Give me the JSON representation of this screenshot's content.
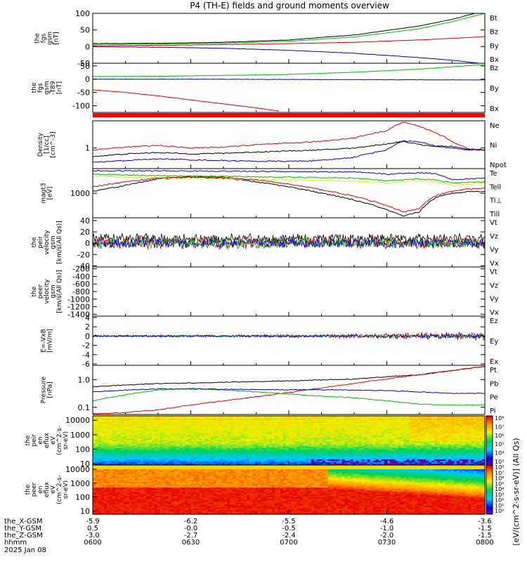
{
  "chart_data": {
    "title": "P4 (TH-E) fields and ground moments overview",
    "type": "line",
    "x": {
      "tick_labels": [
        "0600",
        "0630",
        "0700",
        "0730",
        "0800"
      ],
      "tick_minutes": [
        0,
        30,
        60,
        90,
        120
      ],
      "range_minutes": [
        0,
        120
      ],
      "label": "hhmm",
      "date": "2025 Jan 08",
      "ephemeris": [
        {
          "label": "the_X-GSM",
          "values": [
            "-5.9",
            "-6.2",
            "-5.5",
            "-4.6",
            "-3.6"
          ]
        },
        {
          "label": "the_Y-GSM",
          "values": [
            "0.5",
            "-0.0",
            "-0.5",
            "-1.0",
            "-1.5"
          ]
        },
        {
          "label": "the_Z-GSM",
          "values": [
            "-3.0",
            "-2.7",
            "-2.4",
            "-2.0",
            "-1.5"
          ]
        }
      ]
    },
    "panels": [
      {
        "id": "fgs",
        "ylabel": [
          "the",
          "fgs",
          "gsm",
          "[nT]"
        ],
        "ylim": [
          -50,
          100
        ],
        "log": false,
        "yticks": [
          100,
          50,
          0,
          -50
        ],
        "ytick_labels": [
          "100",
          "50",
          "0",
          "-50"
        ],
        "series": [
          {
            "name": "Bt",
            "color": "#000000",
            "x": [
              0,
              20,
              40,
              60,
              80,
              100,
              110,
              120
            ],
            "y": [
              9,
              10,
              13,
              20,
              35,
              62,
              82,
              108
            ]
          },
          {
            "name": "Bz",
            "color": "#dd0000",
            "x": [
              0,
              20,
              40,
              60,
              80,
              100,
              120
            ],
            "y": [
              3,
              4,
              6,
              9,
              13,
              20,
              30
            ]
          },
          {
            "name": "By",
            "color": "#00bb00",
            "x": [
              0,
              20,
              40,
              60,
              80,
              100,
              110,
              120
            ],
            "y": [
              7,
              8,
              10,
              16,
              29,
              54,
              75,
              100
            ]
          },
          {
            "name": "Bx",
            "color": "#0000cc",
            "x": [
              0,
              20,
              40,
              60,
              80,
              100,
              110,
              120
            ],
            "y": [
              0,
              -2,
              -5,
              -11,
              -20,
              -33,
              -41,
              -52
            ]
          }
        ]
      },
      {
        "id": "fgs_t89",
        "ylabel": [
          "the",
          "fgs",
          "gsm",
          "-T89",
          "[nT]"
        ],
        "ylim": [
          -125,
          60
        ],
        "log": false,
        "yticks": [
          50,
          0,
          -50,
          -100
        ],
        "ytick_labels": [
          "50",
          "0",
          "-50",
          "-100"
        ],
        "series": [
          {
            "name": "Bz",
            "color": "#dd0000",
            "x": [
              0,
              10,
              20,
              30,
              40,
              50,
              57
            ],
            "y": [
              -40,
              -50,
              -63,
              -78,
              -93,
              -108,
              -120
            ]
          },
          {
            "name": "By",
            "color": "#00bb00",
            "x": [
              0,
              20,
              40,
              60,
              80,
              100,
              120
            ],
            "y": [
              10,
              11,
              14,
              18,
              26,
              38,
              55
            ]
          },
          {
            "name": "Bx",
            "color": "#0000cc",
            "x": [
              0,
              30,
              60,
              90,
              120
            ],
            "y": [
              0,
              0,
              -1,
              -2,
              -3
            ]
          }
        ]
      },
      {
        "id": "density",
        "ylabel": [
          "Density",
          "[1/cc]",
          "[cm^-3]"
        ],
        "ylim": [
          0.32,
          4.5
        ],
        "log": true,
        "yticks": [
          1
        ],
        "ytick_labels": [
          "1"
        ],
        "series": [
          {
            "name": "Ne",
            "color": "#dd0000",
            "x": [
              0,
              10,
              20,
              30,
              40,
              50,
              60,
              70,
              80,
              90,
              95,
              100,
              105,
              110,
              115,
              120
            ],
            "y": [
              0.9,
              1.05,
              1.15,
              1.0,
              1.05,
              1.2,
              1.3,
              1.45,
              1.75,
              2.6,
              4.2,
              3.3,
              2.3,
              1.4,
              0.95,
              0.9
            ]
          },
          {
            "name": "Ni",
            "color": "#000000",
            "x": [
              0,
              10,
              20,
              30,
              40,
              50,
              60,
              70,
              80,
              90,
              95,
              100,
              105,
              110,
              115,
              120
            ],
            "y": [
              0.62,
              0.72,
              0.78,
              0.72,
              0.75,
              0.8,
              0.85,
              0.9,
              1.0,
              1.25,
              1.45,
              1.2,
              1.1,
              1.1,
              0.9,
              0.9
            ]
          },
          {
            "name": "Npot",
            "color": "#0000cc",
            "x": [
              0,
              10,
              20,
              30,
              40,
              50,
              60,
              70,
              80,
              90,
              95,
              100,
              105,
              110,
              115,
              120
            ],
            "y": [
              0.45,
              0.5,
              0.55,
              0.52,
              0.5,
              0.48,
              0.48,
              0.5,
              0.6,
              0.9,
              1.5,
              1.4,
              1.1,
              1.0,
              0.9,
              0.9
            ]
          }
        ]
      },
      {
        "id": "temp",
        "ylabel": [
          "magt3",
          "[eV]"
        ],
        "ylim": [
          280,
          3600
        ],
        "log": true,
        "yticks": [
          1000
        ],
        "ytick_labels": [
          "1000"
        ],
        "series": [
          {
            "name": "Te⊥",
            "color": "#0000cc",
            "x": [
              0,
              20,
              40,
              60,
              80,
              90,
              100,
              105,
              110,
              120
            ],
            "y": [
              3200,
              3200,
              3150,
              3100,
              3000,
              2700,
              2900,
              2800,
              2000,
              2200
            ]
          },
          {
            "name": "Tell",
            "color": "#000000",
            "x": [
              0,
              10,
              20,
              30,
              40,
              50,
              60,
              70,
              80,
              90,
              95,
              100,
              105,
              110,
              115,
              120
            ],
            "y": [
              1100,
              1500,
              2100,
              2300,
              2200,
              1800,
              1400,
              1000,
              700,
              420,
              300,
              380,
              800,
              1000,
              1100,
              1100
            ]
          },
          {
            "name": "Ti⊥",
            "color": "#00bb00",
            "x": [
              0,
              20,
              40,
              60,
              80,
              90,
              100,
              105,
              110,
              120
            ],
            "y": [
              2700,
              2500,
              2400,
              2300,
              2200,
              1900,
              2100,
              2000,
              1700,
              1800
            ]
          },
          {
            "name": "Till",
            "color": "#ccff00",
            "x": [
              0,
              20,
              40,
              60,
              80,
              90,
              100,
              105,
              110,
              120
            ],
            "y": [
              2400,
              2200,
              2100,
              2000,
              1900,
              1700,
              1900,
              1800,
              1500,
              1700
            ]
          },
          {
            "name": "Te",
            "color": "#dd0000",
            "x": [
              0,
              10,
              20,
              30,
              40,
              50,
              60,
              70,
              80,
              90,
              95,
              100,
              105,
              110,
              115,
              120
            ],
            "y": [
              1400,
              1800,
              2200,
              2400,
              2300,
              2000,
              1600,
              1200,
              850,
              520,
              380,
              450,
              900,
              1100,
              1250,
              1300
            ]
          }
        ]
      },
      {
        "id": "peir_vel",
        "ylabel": [
          "the",
          "peir",
          "velocity",
          "gsm",
          "[km/s(All Qs)]"
        ],
        "ylim": [
          -42,
          45
        ],
        "log": false,
        "yticks": [
          40,
          20,
          0,
          -20,
          -40
        ],
        "ytick_labels": [
          "40",
          "20",
          "0",
          "-20",
          "-40"
        ],
        "noisy": true,
        "series": [
          {
            "name": "Vt",
            "color": "#000000",
            "base": 8,
            "amp": 10
          },
          {
            "name": "Vz",
            "color": "#dd0000",
            "base": 0,
            "amp": 12
          },
          {
            "name": "Vy",
            "color": "#00bb00",
            "base": 0,
            "amp": 10
          },
          {
            "name": "Vx",
            "color": "#0000cc",
            "base": 0,
            "amp": 9
          }
        ]
      },
      {
        "id": "peer_vel",
        "ylabel": [
          "the",
          "peer",
          "velocity",
          "gsm",
          "[km/s(All Qs)]"
        ],
        "ylim": [
          -1450,
          -150
        ],
        "log": false,
        "yticks": [
          -200,
          -400,
          -600,
          -800,
          -1000,
          -1200,
          -1400
        ],
        "ytick_labels": [
          "-200",
          "-400",
          "-600",
          "-800",
          "-1000",
          "-1200",
          "-1400"
        ],
        "series": [
          {
            "name": "Vt",
            "color": "#000000"
          },
          {
            "name": "Vz",
            "color": "#dd0000"
          },
          {
            "name": "Vy",
            "color": "#00bb00"
          },
          {
            "name": "Vx",
            "color": "#0000cc"
          }
        ]
      },
      {
        "id": "efield",
        "ylabel": [
          "E=-VxB",
          "[mV/m]"
        ],
        "ylim": [
          -6.3,
          4.3
        ],
        "log": false,
        "yticks": [
          4,
          2,
          0,
          -2,
          -4,
          -6
        ],
        "ytick_labels": [
          "4",
          "2",
          "0",
          "-2",
          "-4",
          "-6"
        ],
        "noisy": true,
        "series": [
          {
            "name": "Ez",
            "color": "#dd0000",
            "base": 0,
            "amp": 0.3,
            "grow": 3.2
          },
          {
            "name": "Ey",
            "color": "#00bb00",
            "base": 0,
            "amp": 0.2,
            "grow": 2.0
          },
          {
            "name": "Ex",
            "color": "#0000cc",
            "base": 0,
            "amp": 0.2,
            "grow": 2.8
          }
        ]
      },
      {
        "id": "pressure",
        "ylabel": [
          "Pressure",
          "[nPa]"
        ],
        "ylim": [
          0.055,
          3.3
        ],
        "log": true,
        "yticks": [
          1.0,
          0.1
        ],
        "ytick_labels": [
          "1.0",
          "0.1"
        ],
        "series": [
          {
            "name": "Pt",
            "color": "#000000",
            "x": [
              0,
              20,
              40,
              60,
              80,
              100,
              110,
              120
            ],
            "y": [
              0.55,
              0.72,
              0.8,
              0.9,
              1.05,
              1.5,
              2.1,
              3.0
            ]
          },
          {
            "name": "Pb",
            "color": "#dd0000",
            "x": [
              0,
              5,
              10,
              20,
              30,
              40,
              50,
              60,
              70,
              80,
              90,
              100,
              110,
              120
            ],
            "y": [
              0.06,
              0.06,
              0.065,
              0.08,
              0.12,
              0.17,
              0.24,
              0.34,
              0.5,
              0.72,
              1.05,
              1.5,
              2.1,
              3.0
            ]
          },
          {
            "name": "Pe",
            "color": "#00bb00",
            "x": [
              0,
              10,
              20,
              30,
              40,
              50,
              60,
              70,
              80,
              90,
              100,
              110,
              120
            ],
            "y": [
              0.17,
              0.28,
              0.42,
              0.48,
              0.42,
              0.36,
              0.3,
              0.25,
              0.22,
              0.17,
              0.13,
              0.12,
              0.12
            ]
          },
          {
            "name": "Pi",
            "color": "#0000cc",
            "x": [
              0,
              10,
              20,
              30,
              40,
              50,
              60,
              70,
              80,
              90,
              100,
              110,
              120
            ],
            "y": [
              0.36,
              0.42,
              0.46,
              0.46,
              0.45,
              0.44,
              0.43,
              0.43,
              0.42,
              0.4,
              0.36,
              0.32,
              0.32
            ]
          }
        ]
      }
    ],
    "spectrograms": [
      {
        "id": "peir_en",
        "ylabel": [
          "the",
          "peir",
          "en",
          "eflux",
          "eV",
          "(cm^2-s-",
          "sr-eV)"
        ],
        "ylim": [
          8,
          20000
        ],
        "yticks": [
          10000,
          1000,
          100,
          10
        ],
        "ytick_labels": [
          "10000",
          "1000",
          "100",
          "10"
        ]
      },
      {
        "id": "peer_en",
        "ylabel": [
          "the",
          "peer",
          "en",
          "eflux",
          "eV",
          "(cm^2-s-",
          "sr-eV)"
        ],
        "ylim": [
          6,
          20000
        ],
        "yticks": [
          10000,
          1000,
          100,
          10
        ],
        "ytick_labels": [
          "10000",
          "1000",
          "100",
          "10"
        ]
      }
    ],
    "colorbar": {
      "label": "[eV/(cm^2-s-sr-eV)] (All Qs)",
      "upper_labels": [
        "10⁸",
        "10⁷",
        "10⁶",
        "10⁵",
        "10⁴",
        "10³"
      ],
      "lower_labels": [
        "10⁸",
        "10⁷",
        "10⁶",
        "10⁵",
        "10⁴",
        "10³",
        "10²",
        "10¹",
        "10⁰"
      ]
    }
  },
  "colors": {
    "red": "#dd0000",
    "green": "#00bb00",
    "blue": "#0000cc",
    "black": "#000000",
    "yellowgreen": "#ccff00"
  }
}
